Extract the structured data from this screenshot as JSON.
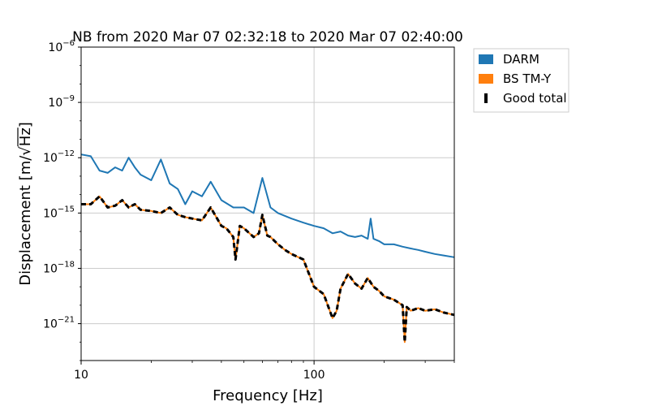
{
  "chart_data": {
    "type": "line",
    "title": "NB from 2020 Mar 07 02:32:18 to 2020 Mar 07 02:40:00",
    "xlabel": "Frequency [Hz]",
    "ylabel_prefix": "Displacement [m/",
    "ylabel_radicand": "Hz",
    "ylabel_suffix": "]",
    "xscale": "log",
    "yscale": "log",
    "xlim": [
      10,
      400
    ],
    "ylim": [
      1e-23,
      1e-06
    ],
    "grid": true,
    "legend_placement": "outside-top-right",
    "x_ticks": [
      {
        "value": 10,
        "label": "10"
      },
      {
        "value": 100,
        "label": "100"
      }
    ],
    "y_ticks": [
      {
        "value": 1e-06,
        "base": "10",
        "exp": "−6"
      },
      {
        "value": 1e-09,
        "base": "10",
        "exp": "−9"
      },
      {
        "value": 1e-12,
        "base": "10",
        "exp": "−12"
      },
      {
        "value": 1e-15,
        "base": "10",
        "exp": "−15"
      },
      {
        "value": 1e-18,
        "base": "10",
        "exp": "−18"
      },
      {
        "value": 1e-21,
        "base": "10",
        "exp": "−21"
      }
    ],
    "series": [
      {
        "name": "DARM",
        "color": "#1f77b4",
        "style": "solid",
        "x": [
          10,
          11,
          12,
          13,
          14,
          15,
          16,
          17,
          18,
          20,
          22,
          24,
          26,
          28,
          30,
          33,
          36,
          40,
          45,
          50,
          55,
          60,
          65,
          70,
          80,
          90,
          100,
          110,
          120,
          130,
          140,
          150,
          160,
          170,
          175,
          180,
          190,
          200,
          220,
          240,
          260,
          280,
          300,
          330,
          360,
          400
        ],
        "y": [
          1.5e-12,
          1.2e-12,
          2e-13,
          1.5e-13,
          3e-13,
          2e-13,
          1e-12,
          3e-13,
          1.2e-13,
          6e-14,
          8e-13,
          4e-14,
          2e-14,
          3e-15,
          1.5e-14,
          8e-15,
          5e-14,
          5e-15,
          2e-15,
          2e-15,
          1e-15,
          8e-14,
          2e-15,
          1e-15,
          5e-16,
          3e-16,
          2e-16,
          1.5e-16,
          8e-17,
          1e-16,
          6e-17,
          5e-17,
          6e-17,
          4e-17,
          5e-16,
          4e-17,
          3e-17,
          2e-17,
          2e-17,
          1.5e-17,
          1.2e-17,
          1e-17,
          8e-18,
          6e-18,
          5e-18,
          4e-18
        ]
      },
      {
        "name": "BS TM-Y",
        "color": "#ff7f0e",
        "style": "solid",
        "x": [
          10,
          11,
          12,
          13,
          14,
          15,
          16,
          17,
          18,
          20,
          22,
          24,
          26,
          28,
          30,
          33,
          36,
          40,
          42,
          45,
          46,
          48,
          50,
          55,
          58,
          60,
          63,
          65,
          70,
          75,
          80,
          90,
          100,
          110,
          120,
          125,
          130,
          140,
          150,
          160,
          170,
          180,
          190,
          200,
          220,
          240,
          245,
          250,
          260,
          280,
          300,
          330,
          360,
          400
        ],
        "y": [
          3e-15,
          3e-15,
          8e-15,
          2e-15,
          2.5e-15,
          5e-15,
          2e-15,
          3e-15,
          1.5e-15,
          1.3e-15,
          1e-15,
          2e-15,
          8e-16,
          6e-16,
          5e-16,
          4e-16,
          2e-15,
          2e-16,
          1.5e-16,
          5e-17,
          3e-18,
          2e-16,
          1.5e-16,
          5e-17,
          8e-17,
          8e-16,
          6e-17,
          5e-17,
          2e-17,
          1e-17,
          6e-18,
          3e-18,
          1e-19,
          4e-20,
          2e-21,
          5e-21,
          8e-20,
          5e-19,
          1.5e-19,
          8e-20,
          3e-19,
          1e-19,
          6e-20,
          3e-20,
          2e-20,
          1e-20,
          1e-22,
          8e-21,
          5e-21,
          7e-21,
          5e-21,
          6e-21,
          4e-21,
          3e-21
        ]
      },
      {
        "name": "Good total",
        "color": "#000000",
        "style": "dashed",
        "x": [
          10,
          11,
          12,
          13,
          14,
          15,
          16,
          17,
          18,
          20,
          22,
          24,
          26,
          28,
          30,
          33,
          36,
          40,
          42,
          45,
          46,
          48,
          50,
          55,
          58,
          60,
          63,
          65,
          70,
          75,
          80,
          90,
          100,
          110,
          120,
          125,
          130,
          140,
          150,
          160,
          170,
          180,
          190,
          200,
          220,
          240,
          245,
          250,
          260,
          280,
          300,
          330,
          360,
          400
        ],
        "y": [
          3e-15,
          3e-15,
          8e-15,
          2e-15,
          2.5e-15,
          5e-15,
          2e-15,
          3e-15,
          1.5e-15,
          1.3e-15,
          1e-15,
          2e-15,
          8e-16,
          6e-16,
          5e-16,
          4e-16,
          2e-15,
          2e-16,
          1.5e-16,
          5e-17,
          3e-18,
          2e-16,
          1.5e-16,
          5e-17,
          8e-17,
          8e-16,
          6e-17,
          5e-17,
          2e-17,
          1e-17,
          6e-18,
          3e-18,
          1e-19,
          4e-20,
          2e-21,
          5e-21,
          8e-20,
          5e-19,
          1.5e-19,
          8e-20,
          3e-19,
          1e-19,
          6e-20,
          3e-20,
          2e-20,
          1e-20,
          1e-22,
          8e-21,
          5e-21,
          7e-21,
          5e-21,
          6e-21,
          4e-21,
          3e-21
        ]
      }
    ]
  }
}
